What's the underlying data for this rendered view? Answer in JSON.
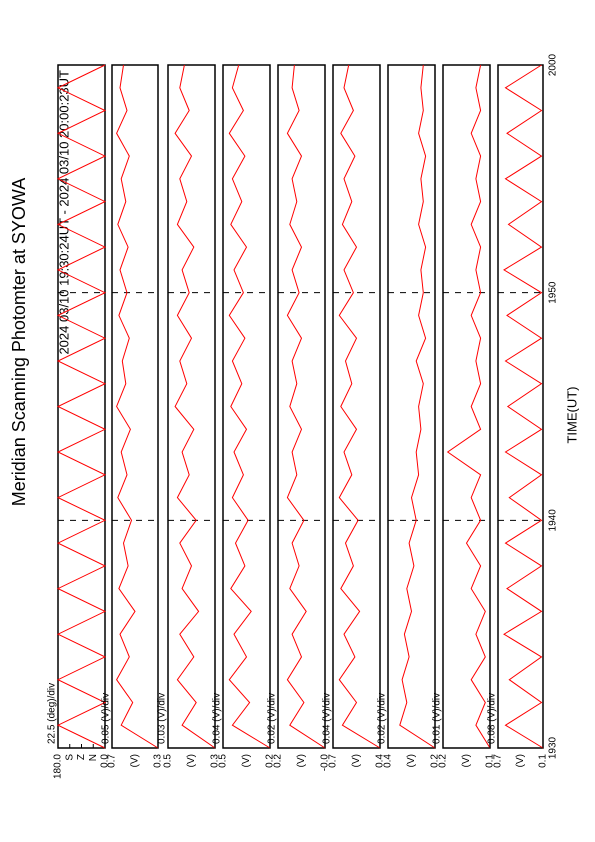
{
  "chart_data": {
    "type": "line",
    "title": "Meridian Scanning Photomter at SYOWA",
    "subtitle": "2024 03/10 19:30:24UT - 2024 03/10 20:00:23UT",
    "xlabel": "TIME(UT)",
    "x": [
      0,
      1,
      2,
      3,
      4,
      5,
      6,
      7,
      8,
      9,
      10,
      11,
      12,
      13,
      14,
      15,
      16,
      17,
      18,
      19,
      20,
      21,
      22,
      23,
      24,
      25,
      26,
      27,
      28,
      29,
      30
    ],
    "xlim": [
      0,
      30
    ],
    "xticks": [
      {
        "value": 0,
        "label": "1930"
      },
      {
        "value": 10,
        "label": "1940"
      },
      {
        "value": 20,
        "label": "1950"
      },
      {
        "value": 30,
        "label": "2000"
      }
    ],
    "grid": true,
    "panels": [
      {
        "scale": "22.5 (deg)/div",
        "color": "#ff0000",
        "ylim": [
          0,
          180
        ],
        "yticks": [
          {
            "value": 180,
            "label": "180.0"
          },
          {
            "value": 135,
            "label": "S"
          },
          {
            "value": 90,
            "label": "Z"
          },
          {
            "value": 45,
            "label": "N"
          },
          {
            "value": 0,
            "label": "0.0"
          }
        ],
        "values": [
          0,
          180,
          0,
          180,
          0,
          180,
          0,
          180,
          0,
          180,
          0,
          180,
          0,
          180,
          0,
          180,
          0,
          180,
          0,
          180,
          0,
          180,
          0,
          180,
          0,
          180,
          0,
          180,
          0,
          180,
          0
        ]
      },
      {
        "scale": "0.05 (V)/div",
        "unit": "(V)",
        "color": "#ff0000",
        "ylim": [
          0.3,
          0.7
        ],
        "yticks": [
          0.7,
          0.3
        ],
        "values": [
          0.3,
          0.62,
          0.52,
          0.66,
          0.55,
          0.63,
          0.5,
          0.64,
          0.56,
          0.6,
          0.53,
          0.65,
          0.57,
          0.62,
          0.54,
          0.66,
          0.58,
          0.61,
          0.55,
          0.64,
          0.57,
          0.63,
          0.56,
          0.65,
          0.58,
          0.62,
          0.55,
          0.66,
          0.57,
          0.63,
          0.6
        ]
      },
      {
        "scale": "0.03 (V)/div",
        "unit": "(V)",
        "color": "#ff0000",
        "ylim": [
          0.3,
          0.5
        ],
        "yticks": [
          0.5,
          0.3
        ],
        "values": [
          0.3,
          0.44,
          0.38,
          0.46,
          0.39,
          0.45,
          0.37,
          0.44,
          0.4,
          0.45,
          0.38,
          0.46,
          0.41,
          0.44,
          0.39,
          0.47,
          0.42,
          0.45,
          0.4,
          0.46,
          0.41,
          0.44,
          0.39,
          0.46,
          0.42,
          0.45,
          0.4,
          0.47,
          0.41,
          0.45,
          0.43
        ]
      },
      {
        "scale": "0.04 (V)/div",
        "unit": "(V)",
        "color": "#ff0000",
        "ylim": [
          0.2,
          0.5
        ],
        "yticks": [
          0.5,
          0.2
        ],
        "values": [
          0.2,
          0.44,
          0.33,
          0.46,
          0.35,
          0.43,
          0.32,
          0.45,
          0.36,
          0.42,
          0.34,
          0.44,
          0.37,
          0.43,
          0.35,
          0.45,
          0.38,
          0.44,
          0.36,
          0.46,
          0.37,
          0.43,
          0.35,
          0.45,
          0.38,
          0.44,
          0.36,
          0.46,
          0.37,
          0.44,
          0.4
        ]
      },
      {
        "scale": "0.02 (V)/div",
        "unit": "(V)",
        "color": "#ff0000",
        "ylim": [
          0,
          0.2
        ],
        "yticks": [
          0.2,
          {
            "value": 0,
            "label": "-0.0"
          }
        ],
        "values": [
          0,
          0.15,
          0.09,
          0.16,
          0.1,
          0.14,
          0.08,
          0.15,
          0.11,
          0.14,
          0.09,
          0.16,
          0.12,
          0.14,
          0.1,
          0.15,
          0.12,
          0.14,
          0.1,
          0.16,
          0.11,
          0.14,
          0.1,
          0.15,
          0.12,
          0.14,
          0.1,
          0.16,
          0.11,
          0.14,
          0.13
        ]
      },
      {
        "scale": "0.04 (V)/div",
        "unit": "(V)",
        "color": "#ff0000",
        "ylim": [
          0.4,
          0.7
        ],
        "yticks": [
          0.7,
          0.4
        ],
        "values": [
          0.4,
          0.64,
          0.55,
          0.66,
          0.56,
          0.63,
          0.53,
          0.65,
          0.57,
          0.62,
          0.54,
          0.66,
          0.58,
          0.63,
          0.55,
          0.65,
          0.58,
          0.62,
          0.55,
          0.66,
          0.57,
          0.63,
          0.55,
          0.64,
          0.58,
          0.63,
          0.56,
          0.65,
          0.57,
          0.63,
          0.6
        ]
      },
      {
        "scale": "0.02 (V)/div",
        "unit": "(V)",
        "color": "#ff0000",
        "ylim": [
          0.2,
          0.4
        ],
        "yticks": [
          0.4,
          0.2
        ],
        "values": [
          0.2,
          0.35,
          0.32,
          0.34,
          0.31,
          0.33,
          0.3,
          0.32,
          0.29,
          0.31,
          0.28,
          0.3,
          0.27,
          0.28,
          0.26,
          0.27,
          0.25,
          0.28,
          0.24,
          0.27,
          0.25,
          0.26,
          0.24,
          0.27,
          0.25,
          0.26,
          0.24,
          0.27,
          0.25,
          0.26,
          0.25
        ]
      },
      {
        "scale": "0.01 (V)/div",
        "unit": "(V)",
        "color": "#ff0000",
        "ylim": [
          0.1,
          0.2
        ],
        "yticks": [
          0.2,
          0.1
        ],
        "values": [
          0.1,
          0.13,
          0.11,
          0.14,
          0.11,
          0.13,
          0.11,
          0.14,
          0.12,
          0.15,
          0.12,
          0.14,
          0.12,
          0.19,
          0.12,
          0.14,
          0.12,
          0.13,
          0.12,
          0.14,
          0.12,
          0.13,
          0.12,
          0.14,
          0.12,
          0.13,
          0.12,
          0.14,
          0.12,
          0.13,
          0.12
        ]
      },
      {
        "scale": "0.08 (V)/div",
        "unit": "(V)",
        "color": "#ff0000",
        "ylim": [
          0.1,
          0.7
        ],
        "yticks": [
          0.7,
          0.1
        ],
        "values": [
          0.1,
          0.6,
          0.12,
          0.55,
          0.12,
          0.62,
          0.12,
          0.58,
          0.12,
          0.6,
          0.12,
          0.55,
          0.12,
          0.6,
          0.12,
          0.57,
          0.12,
          0.6,
          0.12,
          0.58,
          0.12,
          0.62,
          0.12,
          0.56,
          0.12,
          0.6,
          0.12,
          0.58,
          0.12,
          0.6,
          0.12
        ]
      }
    ]
  }
}
